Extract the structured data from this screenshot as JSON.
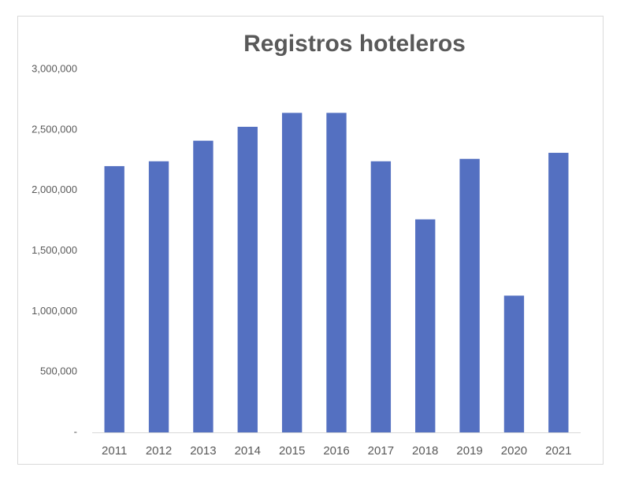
{
  "chart_data": {
    "type": "bar",
    "title": "Registros hoteleros",
    "categories": [
      "2011",
      "2012",
      "2013",
      "2014",
      "2015",
      "2016",
      "2017",
      "2018",
      "2019",
      "2020",
      "2021"
    ],
    "values": [
      2200000,
      2240000,
      2410000,
      2525000,
      2640000,
      2640000,
      2240000,
      1760000,
      2260000,
      1130000,
      2310000
    ],
    "color": "#5470c1",
    "ylim": [
      0,
      3000000
    ],
    "yticks": [
      {
        "value": 0,
        "label": "-"
      },
      {
        "value": 500000,
        "label": "500,000"
      },
      {
        "value": 1000000,
        "label": "1,000,000"
      },
      {
        "value": 1500000,
        "label": "1,500,000"
      },
      {
        "value": 2000000,
        "label": "2,000,000"
      },
      {
        "value": 2500000,
        "label": "2,500,000"
      },
      {
        "value": 3000000,
        "label": "3,000,000"
      }
    ],
    "grid": false
  }
}
